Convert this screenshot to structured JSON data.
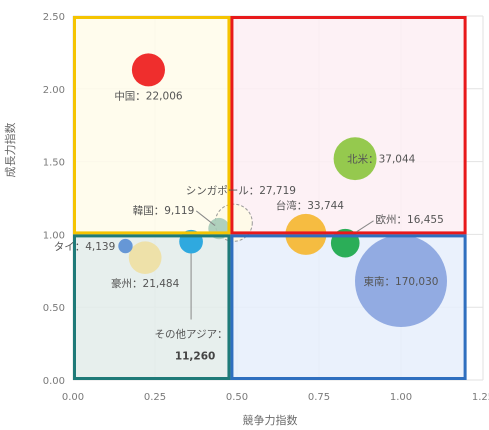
{
  "chart_data": {
    "type": "bubble",
    "xlabel": "競争力指数",
    "ylabel": "成長力指数",
    "xlim": [
      0,
      1.25
    ],
    "ylim": [
      0,
      2.5
    ],
    "x_ticks": [
      "0.00",
      "0.25",
      "0.50",
      "0.75",
      "1.00",
      "1.25"
    ],
    "y_ticks": [
      "0.00",
      "0.50",
      "1.00",
      "1.50",
      "2.00",
      "2.50"
    ],
    "grid": true,
    "quadrants": [
      {
        "name": "upper-left",
        "x": [
          0.0,
          0.48
        ],
        "y": [
          1.0,
          2.5
        ],
        "border": "#f5c400",
        "fill": "#fffbea"
      },
      {
        "name": "upper-right",
        "x": [
          0.48,
          1.2
        ],
        "y": [
          1.0,
          2.5
        ],
        "border": "#e8191b",
        "fill": "#fdeef3"
      },
      {
        "name": "lower-left",
        "x": [
          0.0,
          0.48
        ],
        "y": [
          0.0,
          1.0
        ],
        "border": "#1f7a78",
        "fill": "#e3ecea"
      },
      {
        "name": "lower-right",
        "x": [
          0.48,
          1.2
        ],
        "y": [
          0.0,
          1.0
        ],
        "border": "#2f6fbf",
        "fill": "#e6eefb"
      }
    ],
    "points": [
      {
        "name": "中国",
        "label": "中国：22,006",
        "x": 0.23,
        "y": 2.13,
        "value": 22006,
        "color": "#ee1c1c",
        "label_pos": "below"
      },
      {
        "name": "北米",
        "label": "北米：37,044",
        "x": 0.86,
        "y": 1.52,
        "value": 37044,
        "color": "#8cc63f",
        "label_pos": "inside-right"
      },
      {
        "name": "シンガポール",
        "label": "シンガポール：27,719",
        "x": 0.49,
        "y": 1.08,
        "value": 27719,
        "color": "#fffbe6",
        "stroke": "#999999",
        "label_pos": "upper-right"
      },
      {
        "name": "韓国",
        "label": "韓国：9,119",
        "x": 0.445,
        "y": 1.04,
        "value": 9119,
        "color": "#a8ccb8",
        "label_pos": "upper-left"
      },
      {
        "name": "台湾",
        "label": "台湾：33,744",
        "x": 0.71,
        "y": 1.0,
        "value": 33744,
        "color": "#f5b731",
        "label_pos": "above"
      },
      {
        "name": "欧州",
        "label": "欧州：16,455",
        "x": 0.83,
        "y": 0.94,
        "value": 16455,
        "color": "#1aa84a",
        "label_pos": "upper-right"
      },
      {
        "name": "タイ",
        "label": "タイ：4,139",
        "x": 0.16,
        "y": 0.92,
        "value": 4139,
        "color": "#5b8fd4",
        "label_pos": "left"
      },
      {
        "name": "豪州",
        "label": "豪州：21,484",
        "x": 0.22,
        "y": 0.84,
        "value": 21484,
        "color": "#efe0a3",
        "label_pos": "below"
      },
      {
        "name": "その他アジア",
        "label": "その他アジア：",
        "value_label": "11,260",
        "x": 0.36,
        "y": 0.95,
        "value": 11260,
        "color": "#1fa3dd",
        "label_pos": "below-leader"
      },
      {
        "name": "東南",
        "label": "東南：170,030",
        "x": 1.0,
        "y": 0.68,
        "value": 170030,
        "color": "#8aa5e0",
        "label_pos": "inside"
      }
    ]
  }
}
